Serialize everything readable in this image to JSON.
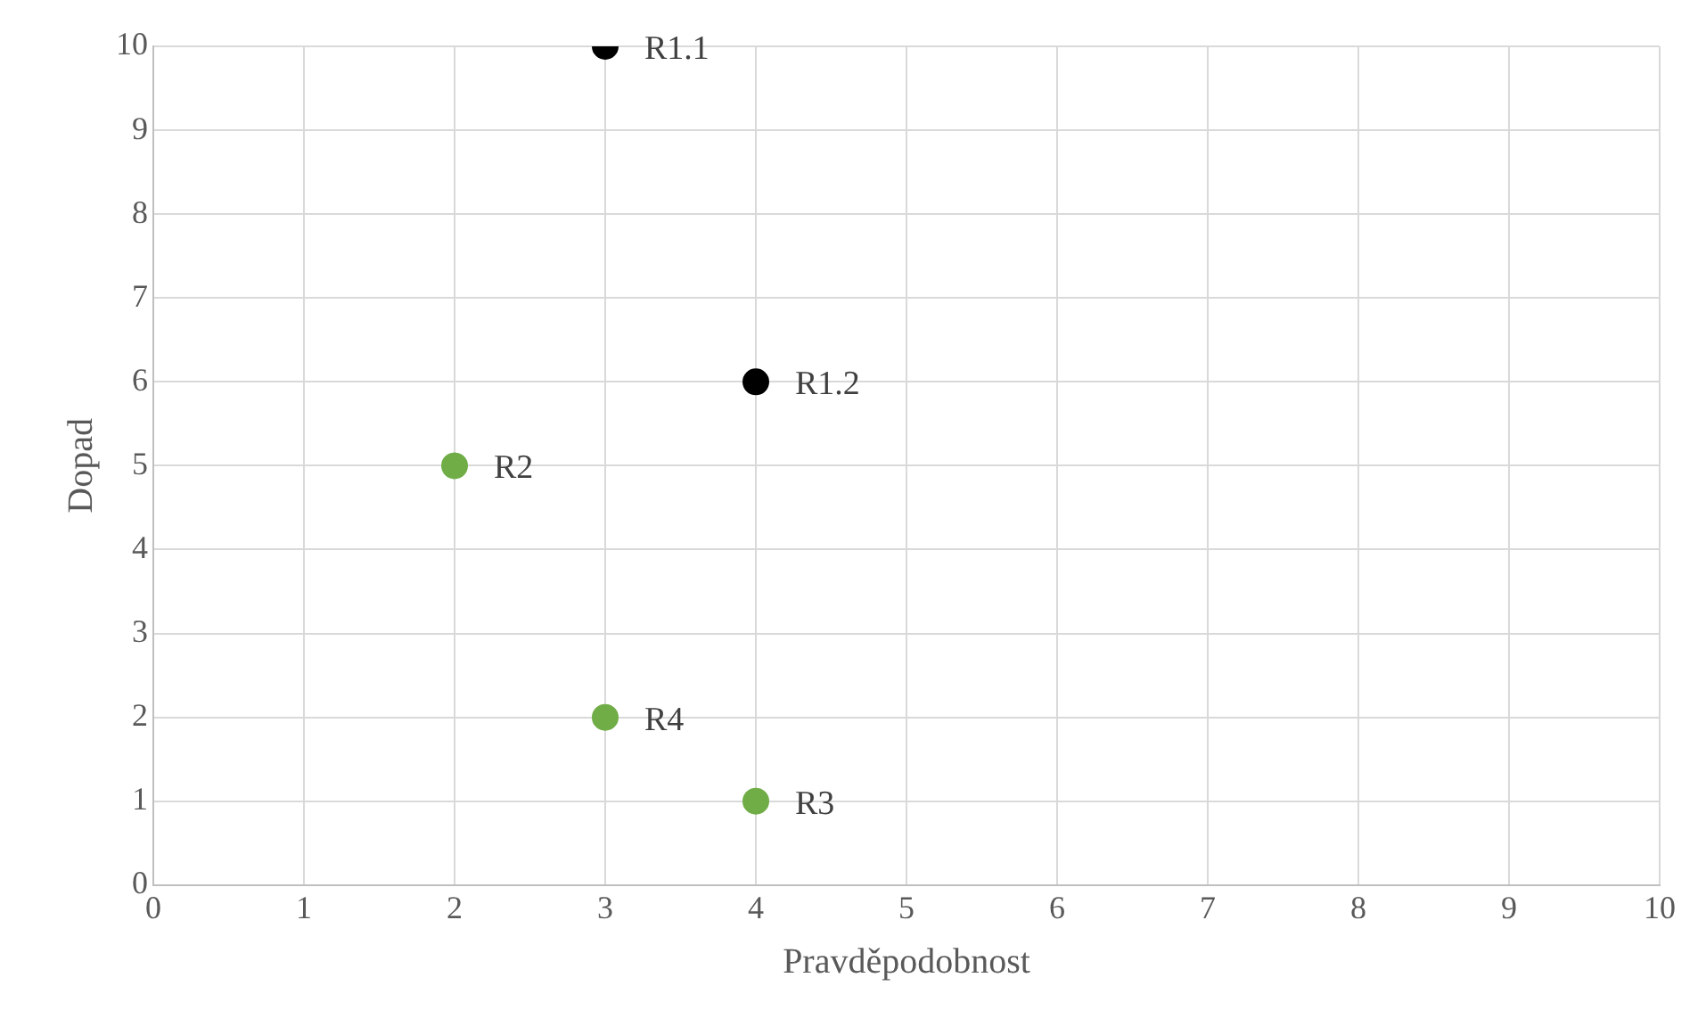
{
  "chart_data": {
    "type": "scatter",
    "xlabel": "Pravděpodobnost",
    "ylabel": "Dopad",
    "x": [
      3,
      4,
      2,
      3,
      4
    ],
    "values": [
      10,
      6,
      5,
      2,
      1
    ],
    "colors": [
      "#000000",
      "#000000",
      "#70ad47",
      "#70ad47",
      "#70ad47"
    ],
    "xlim": [
      0,
      10
    ],
    "xticks": [
      0,
      1,
      2,
      3,
      4,
      5,
      6,
      7,
      8,
      9,
      10
    ],
    "ylim": [
      0,
      10
    ],
    "yticks": [
      0,
      1,
      2,
      3,
      4,
      5,
      6,
      7,
      8,
      9,
      10
    ],
    "grid": true,
    "legend": false,
    "marker": "circle",
    "annotations": [
      {
        "text": "R1.1",
        "x": 3,
        "y": 10
      },
      {
        "text": "R1.2",
        "x": 4,
        "y": 6
      },
      {
        "text": "R2",
        "x": 2,
        "y": 5
      },
      {
        "text": "R4",
        "x": 3,
        "y": 2
      },
      {
        "text": "R3",
        "x": 4,
        "y": 1
      }
    ]
  }
}
